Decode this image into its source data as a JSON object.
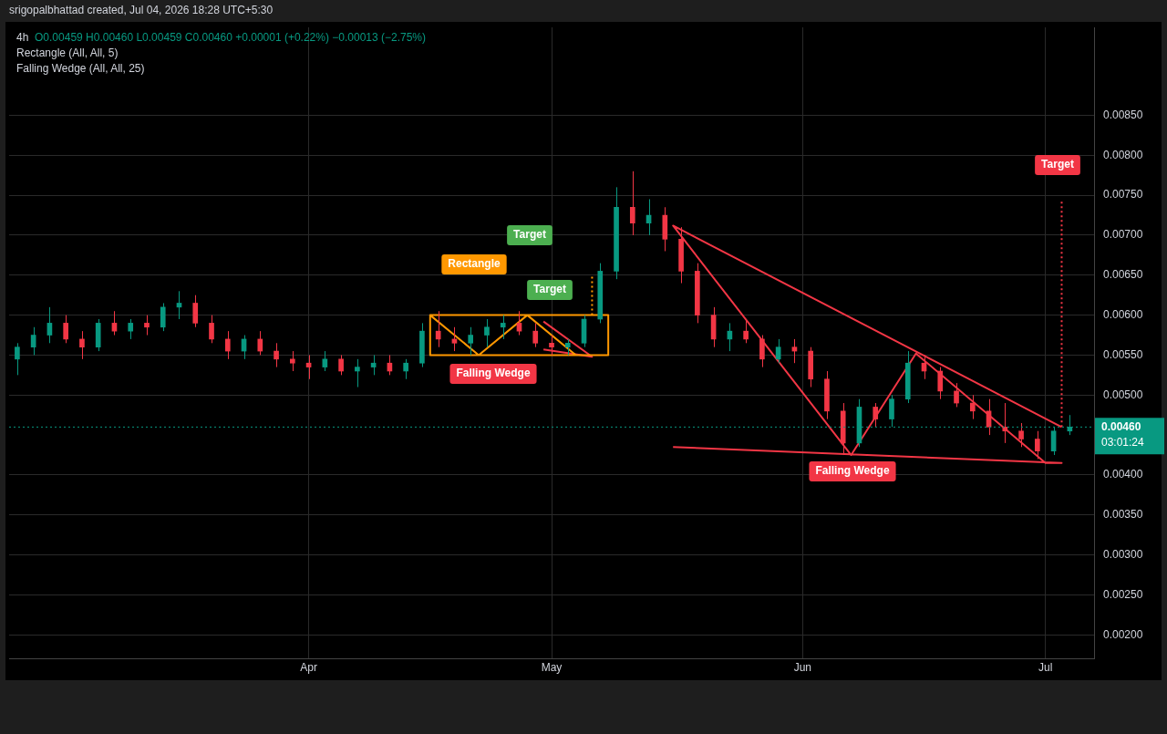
{
  "chart_data": {
    "type": "candlestick",
    "title": "4h",
    "x": [
      "2026-02-24",
      "2026-02-26",
      "2026-02-28",
      "2026-03-02",
      "2026-03-04",
      "2026-03-06",
      "2026-03-08",
      "2026-03-10",
      "2026-03-12",
      "2026-03-14",
      "2026-03-16",
      "2026-03-18",
      "2026-03-20",
      "2026-03-22",
      "2026-03-24",
      "2026-03-26",
      "2026-03-28",
      "2026-03-30",
      "2026-04-01",
      "2026-04-03",
      "2026-04-05",
      "2026-04-07",
      "2026-04-09",
      "2026-04-11",
      "2026-04-13",
      "2026-04-15",
      "2026-04-17",
      "2026-04-19",
      "2026-04-21",
      "2026-04-23",
      "2026-04-25",
      "2026-04-27",
      "2026-04-29",
      "2026-05-01",
      "2026-05-03",
      "2026-05-05",
      "2026-05-07",
      "2026-05-09",
      "2026-05-11",
      "2026-05-13",
      "2026-05-15",
      "2026-05-17",
      "2026-05-19",
      "2026-05-21",
      "2026-05-23",
      "2026-05-25",
      "2026-05-27",
      "2026-05-29",
      "2026-05-31",
      "2026-06-02",
      "2026-06-04",
      "2026-06-06",
      "2026-06-08",
      "2026-06-10",
      "2026-06-12",
      "2026-06-14",
      "2026-06-16",
      "2026-06-18",
      "2026-06-20",
      "2026-06-22",
      "2026-06-24",
      "2026-06-26",
      "2026-06-28",
      "2026-06-30",
      "2026-07-02",
      "2026-07-04"
    ],
    "ohlc": [
      [
        0.00545,
        0.00565,
        0.00525,
        0.0056
      ],
      [
        0.0056,
        0.00585,
        0.0055,
        0.00575
      ],
      [
        0.00575,
        0.0061,
        0.00565,
        0.0059
      ],
      [
        0.0059,
        0.006,
        0.00565,
        0.0057
      ],
      [
        0.0057,
        0.0058,
        0.00545,
        0.0056
      ],
      [
        0.0056,
        0.00595,
        0.00555,
        0.0059
      ],
      [
        0.0059,
        0.00605,
        0.00575,
        0.0058
      ],
      [
        0.0058,
        0.00595,
        0.0057,
        0.0059
      ],
      [
        0.0059,
        0.006,
        0.00575,
        0.00585
      ],
      [
        0.00585,
        0.00615,
        0.0058,
        0.0061
      ],
      [
        0.0061,
        0.0063,
        0.00595,
        0.00615
      ],
      [
        0.00615,
        0.00625,
        0.00585,
        0.0059
      ],
      [
        0.0059,
        0.006,
        0.00565,
        0.0057
      ],
      [
        0.0057,
        0.0058,
        0.00545,
        0.00555
      ],
      [
        0.00555,
        0.00575,
        0.00545,
        0.0057
      ],
      [
        0.0057,
        0.0058,
        0.0055,
        0.00555
      ],
      [
        0.00555,
        0.00565,
        0.00535,
        0.00545
      ],
      [
        0.00545,
        0.00555,
        0.0053,
        0.0054
      ],
      [
        0.0054,
        0.0055,
        0.0052,
        0.00535
      ],
      [
        0.00535,
        0.00555,
        0.0053,
        0.00545
      ],
      [
        0.00545,
        0.0055,
        0.00525,
        0.0053
      ],
      [
        0.0053,
        0.00545,
        0.0051,
        0.00535
      ],
      [
        0.00535,
        0.0055,
        0.00525,
        0.0054
      ],
      [
        0.0054,
        0.0055,
        0.00525,
        0.0053
      ],
      [
        0.0053,
        0.00545,
        0.0052,
        0.0054
      ],
      [
        0.0054,
        0.0059,
        0.00535,
        0.0058
      ],
      [
        0.0058,
        0.00605,
        0.0056,
        0.0057
      ],
      [
        0.0057,
        0.00585,
        0.00555,
        0.00565
      ],
      [
        0.00565,
        0.00585,
        0.0055,
        0.00575
      ],
      [
        0.00575,
        0.00595,
        0.0056,
        0.00585
      ],
      [
        0.00585,
        0.006,
        0.0057,
        0.0059
      ],
      [
        0.0059,
        0.00605,
        0.00575,
        0.0058
      ],
      [
        0.0058,
        0.0059,
        0.0056,
        0.00565
      ],
      [
        0.00565,
        0.00575,
        0.0055,
        0.0056
      ],
      [
        0.0056,
        0.0057,
        0.0055,
        0.00565
      ],
      [
        0.00565,
        0.006,
        0.0056,
        0.00595
      ],
      [
        0.00595,
        0.00665,
        0.0059,
        0.00655
      ],
      [
        0.00655,
        0.0076,
        0.00645,
        0.00735
      ],
      [
        0.00735,
        0.0078,
        0.007,
        0.00715
      ],
      [
        0.00715,
        0.00745,
        0.007,
        0.00725
      ],
      [
        0.00725,
        0.00735,
        0.0068,
        0.00695
      ],
      [
        0.00695,
        0.0071,
        0.0064,
        0.00655
      ],
      [
        0.00655,
        0.00665,
        0.0059,
        0.006
      ],
      [
        0.006,
        0.0061,
        0.0056,
        0.0057
      ],
      [
        0.0057,
        0.0059,
        0.00555,
        0.0058
      ],
      [
        0.0058,
        0.00595,
        0.00565,
        0.0057
      ],
      [
        0.0057,
        0.00575,
        0.00535,
        0.00545
      ],
      [
        0.00545,
        0.0057,
        0.0054,
        0.0056
      ],
      [
        0.0056,
        0.0057,
        0.0054,
        0.00555
      ],
      [
        0.00555,
        0.0056,
        0.0051,
        0.0052
      ],
      [
        0.0052,
        0.0053,
        0.0047,
        0.0048
      ],
      [
        0.0048,
        0.0049,
        0.00425,
        0.0044
      ],
      [
        0.0044,
        0.00495,
        0.00435,
        0.00485
      ],
      [
        0.00485,
        0.0049,
        0.0046,
        0.0047
      ],
      [
        0.0047,
        0.005,
        0.0046,
        0.00495
      ],
      [
        0.00495,
        0.00555,
        0.0049,
        0.0054
      ],
      [
        0.0054,
        0.0055,
        0.0052,
        0.0053
      ],
      [
        0.0053,
        0.00535,
        0.00495,
        0.00505
      ],
      [
        0.00505,
        0.00515,
        0.00485,
        0.0049
      ],
      [
        0.0049,
        0.005,
        0.0047,
        0.0048
      ],
      [
        0.0048,
        0.00495,
        0.0045,
        0.0046
      ],
      [
        0.0046,
        0.0049,
        0.0044,
        0.00455
      ],
      [
        0.00455,
        0.00465,
        0.00435,
        0.00445
      ],
      [
        0.00445,
        0.00455,
        0.0042,
        0.0043
      ],
      [
        0.0043,
        0.0046,
        0.00425,
        0.00455
      ],
      [
        0.00455,
        0.00475,
        0.0045,
        0.0046
      ]
    ],
    "colors": [
      "#089981",
      "#089981",
      "#089981",
      "#f23645",
      "#f23645",
      "#089981",
      "#f23645",
      "#089981",
      "#f23645",
      "#089981",
      "#089981",
      "#f23645",
      "#f23645",
      "#f23645",
      "#089981",
      "#f23645",
      "#f23645",
      "#f23645",
      "#f23645",
      "#089981",
      "#f23645",
      "#089981",
      "#089981",
      "#f23645",
      "#089981",
      "#089981",
      "#f23645",
      "#f23645",
      "#089981",
      "#089981",
      "#089981",
      "#f23645",
      "#f23645",
      "#f23645",
      "#089981",
      "#089981",
      "#089981",
      "#089981",
      "#f23645",
      "#089981",
      "#f23645",
      "#f23645",
      "#f23645",
      "#f23645",
      "#089981",
      "#f23645",
      "#f23645",
      "#089981",
      "#f23645",
      "#f23645",
      "#f23645",
      "#f23645",
      "#089981",
      "#f23645",
      "#089981",
      "#089981",
      "#f23645",
      "#f23645",
      "#f23645",
      "#f23645",
      "#f23645",
      "#f23645",
      "#f23645",
      "#f23645",
      "#089981",
      "#089981"
    ],
    "series": [
      {
        "type": "line",
        "color": "#ff9800",
        "x": [
          "2026-04-16",
          "2026-04-22",
          "2026-04-28",
          "2026-05-04",
          "2026-05-08",
          "2026-05-08",
          "2026-04-16",
          "2026-04-16",
          "2026-05-04"
        ],
        "values": [
          0.006,
          0.0055,
          0.006,
          0.0055,
          0.0055,
          0.006,
          0.006,
          0.0055,
          0.0055
        ]
      },
      {
        "type": "line",
        "color": "#f23645",
        "x": [
          "2026-04-30",
          "2026-05-06",
          "2026-04-30"
        ],
        "values": [
          0.00592,
          0.00548,
          0.00557
        ]
      },
      {
        "type": "line",
        "color": "#ff9800",
        "line_style": "dotted",
        "x": [
          "2026-05-06",
          "2026-05-06"
        ],
        "values": [
          0.006,
          0.0065
        ]
      },
      {
        "type": "line",
        "color": "#f23645",
        "x": [
          "2026-07-03",
          "2026-05-16",
          "2026-06-07",
          "2026-06-15",
          "2026-07-01",
          "2026-07-03",
          "2026-05-16"
        ],
        "values": [
          0.0046,
          0.00712,
          0.00425,
          0.00552,
          0.00415,
          0.00415,
          0.00435
        ]
      },
      {
        "type": "line",
        "color": "#f23645",
        "line_style": "dotted",
        "x": [
          "2026-07-03",
          "2026-07-03"
        ],
        "values": [
          0.0046,
          0.00745
        ]
      }
    ],
    "xlim": [
      "2026-02-23",
      "2026-07-07"
    ],
    "xticks": [
      {
        "value": "2026-04-01",
        "label": "Apr"
      },
      {
        "value": "2026-05-01",
        "label": "May"
      },
      {
        "value": "2026-06-01",
        "label": "Jun"
      },
      {
        "value": "2026-07-01",
        "label": "Jul"
      }
    ],
    "ylim": [
      0.0017,
      0.0096
    ],
    "yticks": [
      {
        "value": 0.002,
        "label": "0.00200"
      },
      {
        "value": 0.0025,
        "label": "0.00250"
      },
      {
        "value": 0.003,
        "label": "0.00300"
      },
      {
        "value": 0.0035,
        "label": "0.00350"
      },
      {
        "value": 0.004,
        "label": "0.00400"
      },
      {
        "value": 0.005,
        "label": "0.00500"
      },
      {
        "value": 0.0055,
        "label": "0.00550"
      },
      {
        "value": 0.006,
        "label": "0.00600"
      },
      {
        "value": 0.0065,
        "label": "0.00650"
      },
      {
        "value": 0.007,
        "label": "0.00700"
      },
      {
        "value": 0.0075,
        "label": "0.00750"
      },
      {
        "value": 0.008,
        "label": "0.00800"
      },
      {
        "value": 0.0085,
        "label": "0.00850"
      }
    ],
    "grid": true,
    "ref_lines": [
      {
        "axis": "y",
        "value": 0.0046,
        "label": "0.00460",
        "color": "#089981",
        "line_style": "dotted"
      }
    ],
    "annotations": [
      "srigopalbhattad created, Jul 04, 2026 18:28 UTC+5:30",
      "O0.00459 H0.00460 L0.00459 C0.00460 +0.00001 (+0.22%) −0.00013 (−2.75%)",
      "Rectangle (All, All, 5)",
      "Falling Wedge (All, All, 25)",
      "03:01:24",
      "Target",
      "Rectangle",
      "Target",
      "Falling Wedge",
      "Falling Wedge",
      "Target"
    ]
  }
}
